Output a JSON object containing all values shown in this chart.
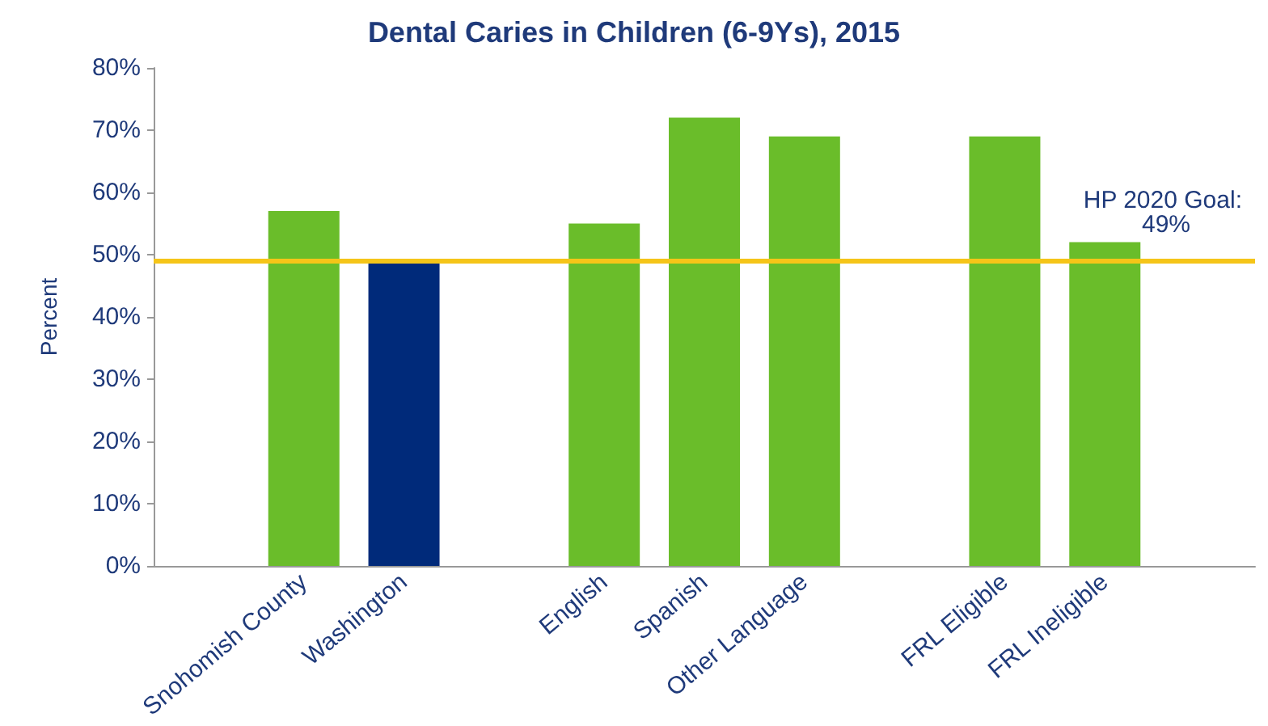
{
  "chart_data": {
    "type": "bar",
    "title": "Dental Caries in Children (6-9Ys), 2015",
    "ylabel": "Percent",
    "categories": [
      null,
      "Snohomish County",
      "Washington",
      null,
      "English",
      "Spanish",
      "Other Language",
      null,
      "FRL Eligible",
      "FRL Ineligible",
      null
    ],
    "values": [
      null,
      57,
      49,
      null,
      55,
      72,
      69,
      null,
      69,
      52,
      null
    ],
    "colors": [
      "#6abd2a",
      "#6abd2a",
      "#002a7a",
      "#6abd2a",
      "#6abd2a",
      "#6abd2a",
      "#6abd2a",
      "#6abd2a",
      "#6abd2a",
      "#6abd2a",
      "#6abd2a"
    ],
    "ylim": [
      0,
      80
    ],
    "yticks": [
      {
        "value": 0,
        "label": "0%"
      },
      {
        "value": 10,
        "label": "10%"
      },
      {
        "value": 20,
        "label": "20%"
      },
      {
        "value": 30,
        "label": "30%"
      },
      {
        "value": 40,
        "label": "40%"
      },
      {
        "value": 50,
        "label": "50%"
      },
      {
        "value": 60,
        "label": "60%"
      },
      {
        "value": 70,
        "label": "70%"
      },
      {
        "value": 80,
        "label": "80%"
      }
    ],
    "ref_lines": [
      {
        "axis": "y",
        "value": 49,
        "label": "HP 2020 Goal: 49%",
        "color": "#f5c518",
        "line_style": "solid"
      }
    ],
    "grid": false
  }
}
